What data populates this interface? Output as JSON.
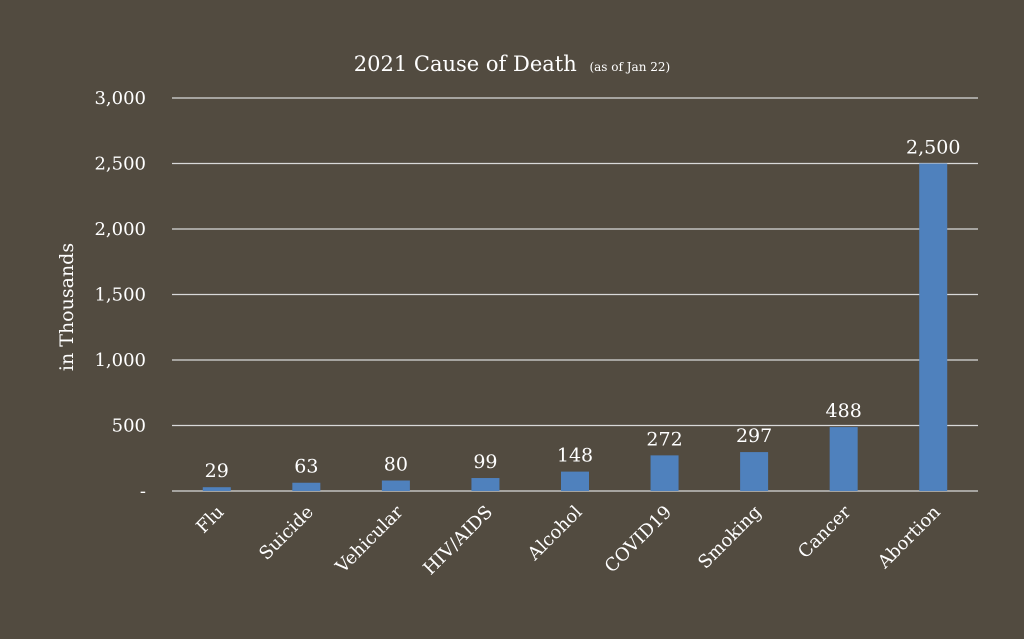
{
  "chart_data": {
    "type": "bar",
    "title": "2021 Cause of Death",
    "subtitle": "(as of Jan 22)",
    "ylabel": "in Thousands",
    "xlabel": "",
    "categories": [
      "Flu",
      "Suicide",
      "Vehicular",
      "HIV/AIDS",
      "Alcohol",
      "COVID19",
      "Smoking",
      "Cancer",
      "Abortion"
    ],
    "values": [
      29,
      63,
      80,
      99,
      148,
      272,
      297,
      488,
      2500
    ],
    "data_labels": [
      "29",
      "63",
      "80",
      "99",
      "148",
      "272",
      "297",
      "488",
      "2,500"
    ],
    "ylim": [
      0,
      3000
    ],
    "yticks": [
      0,
      500,
      1000,
      1500,
      2000,
      2500,
      3000
    ],
    "ytick_labels": [
      "-",
      "500",
      "1,000",
      "1,500",
      "2,000",
      "2,500",
      "3,000"
    ],
    "grid": true,
    "legend": "none",
    "colors": {
      "background": "#524b40",
      "bar": "#4f81bd",
      "grid": "#d9d9d9",
      "text": "#ffffff"
    }
  }
}
